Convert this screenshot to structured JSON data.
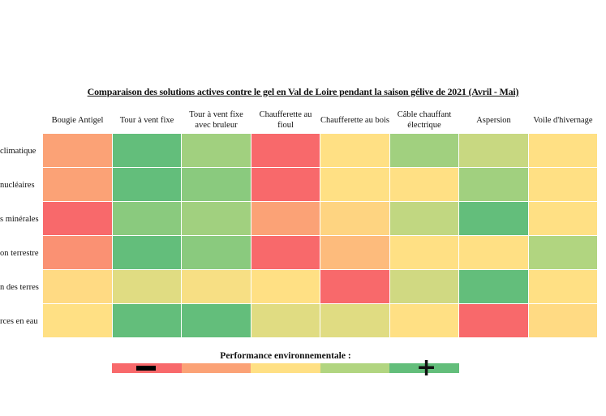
{
  "chart_data": {
    "type": "heatmap",
    "title": "Comparaison des solutions actives contre le gel en Val de Loire pendant la saison gélive de 2021 (Avril - Mai)",
    "columns": [
      "Bougie Antigel",
      "Tour à vent fixe",
      "Tour à vent fixe avec bruleur",
      "Chaufferette au fioul",
      "Chaufferette au bois",
      "Câble chauffant électrique",
      "Aspersion",
      "Voile d'hivernage"
    ],
    "rows": [
      "climatique",
      "nucléaires",
      "s minérales",
      "on terrestre",
      "n des terres",
      "rces en eau"
    ],
    "scale_min": 1,
    "scale_max": 5,
    "values": [
      [
        2,
        5,
        4.2,
        1,
        3,
        4.2,
        3.7,
        3
      ],
      [
        2,
        5,
        4.5,
        1,
        3,
        3,
        4.2,
        3
      ],
      [
        1,
        4.5,
        4.2,
        2,
        2.8,
        3.8,
        5,
        3
      ],
      [
        1.7,
        5,
        4.5,
        1,
        2.4,
        3,
        3,
        4
      ],
      [
        2.9,
        3.4,
        3.1,
        3,
        1,
        3.6,
        5,
        3
      ],
      [
        3,
        5,
        5,
        3.4,
        3.4,
        3,
        1,
        2.9
      ]
    ],
    "color_scale": [
      "#f8696b",
      "#fba276",
      "#ffe084",
      "#b1d580",
      "#63be7b"
    ],
    "legend": {
      "title": "Performance environnementale :",
      "low_symbol": "−",
      "high_symbol": "+"
    }
  }
}
